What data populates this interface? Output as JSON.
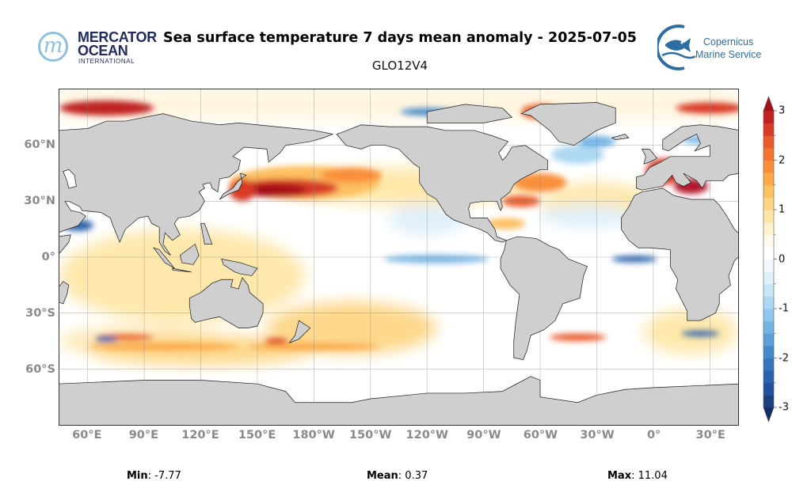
{
  "header": {
    "title": "Sea surface temperature 7 days mean anomaly - 2025-07-05",
    "subtitle": "GLO12V4"
  },
  "logos": {
    "mercator": {
      "mark": "m",
      "line1": "MERCATOR",
      "line2": "OCEAN",
      "line3": "INTERNATIONAL"
    },
    "copernicus": {
      "line1": "Copernicus",
      "line2": "Marine Service",
      "icon": "fish-icon"
    }
  },
  "map": {
    "lon_ticks": [
      {
        "value": 60,
        "label": "60°E"
      },
      {
        "value": 90,
        "label": "90°E"
      },
      {
        "value": 120,
        "label": "120°E"
      },
      {
        "value": 150,
        "label": "150°E"
      },
      {
        "value": 180,
        "label": "180°W"
      },
      {
        "value": 210,
        "label": "150°W"
      },
      {
        "value": 240,
        "label": "120°W"
      },
      {
        "value": 270,
        "label": "90°W"
      },
      {
        "value": 300,
        "label": "60°W"
      },
      {
        "value": 330,
        "label": "30°W"
      },
      {
        "value": 360,
        "label": "0°"
      },
      {
        "value": 390,
        "label": "30°E"
      }
    ],
    "lat_ticks": [
      {
        "value": 60,
        "label": "60°N"
      },
      {
        "value": 30,
        "label": "30°N"
      },
      {
        "value": 0,
        "label": "0°"
      },
      {
        "value": -30,
        "label": "30°S"
      },
      {
        "value": -60,
        "label": "60°S"
      }
    ],
    "lon_range": [
      45,
      405
    ],
    "lat_range": [
      -90,
      90
    ]
  },
  "colorbar": {
    "range": [
      -3,
      3
    ],
    "ticks": [
      {
        "value": 3,
        "label": "3"
      },
      {
        "value": 2,
        "label": "2"
      },
      {
        "value": 1,
        "label": "1"
      },
      {
        "value": 0,
        "label": "0"
      },
      {
        "value": -1,
        "label": "-1"
      },
      {
        "value": -2,
        "label": "-2"
      },
      {
        "value": -3,
        "label": "-3"
      }
    ],
    "colors": [
      "#1c3f7e",
      "#22509a",
      "#2a62ad",
      "#3675be",
      "#4689cb",
      "#5b9ed8",
      "#74b3e4",
      "#8fc7ef",
      "#acd8f3",
      "#c6e5f6",
      "#def0fa",
      "#f3f9fe",
      "#ffffff",
      "#fffaeb",
      "#fff2cc",
      "#fee6a6",
      "#fdd585",
      "#fdc061",
      "#fca94a",
      "#f98f3a",
      "#f47532",
      "#e95a2c",
      "#d83b27",
      "#c02224"
    ],
    "over_color": "#a50f15",
    "under_color": "#152d63"
  },
  "stats": {
    "min_label": "Min",
    "min_value": ": -7.77",
    "mean_label": "Mean",
    "mean_value": ": 0.37",
    "max_label": "Max",
    "max_value": ": 11.04"
  },
  "colors": {
    "land": "#cfcfcf",
    "coast": "#1a1a1a",
    "axis_label": "#8a8a8a"
  }
}
